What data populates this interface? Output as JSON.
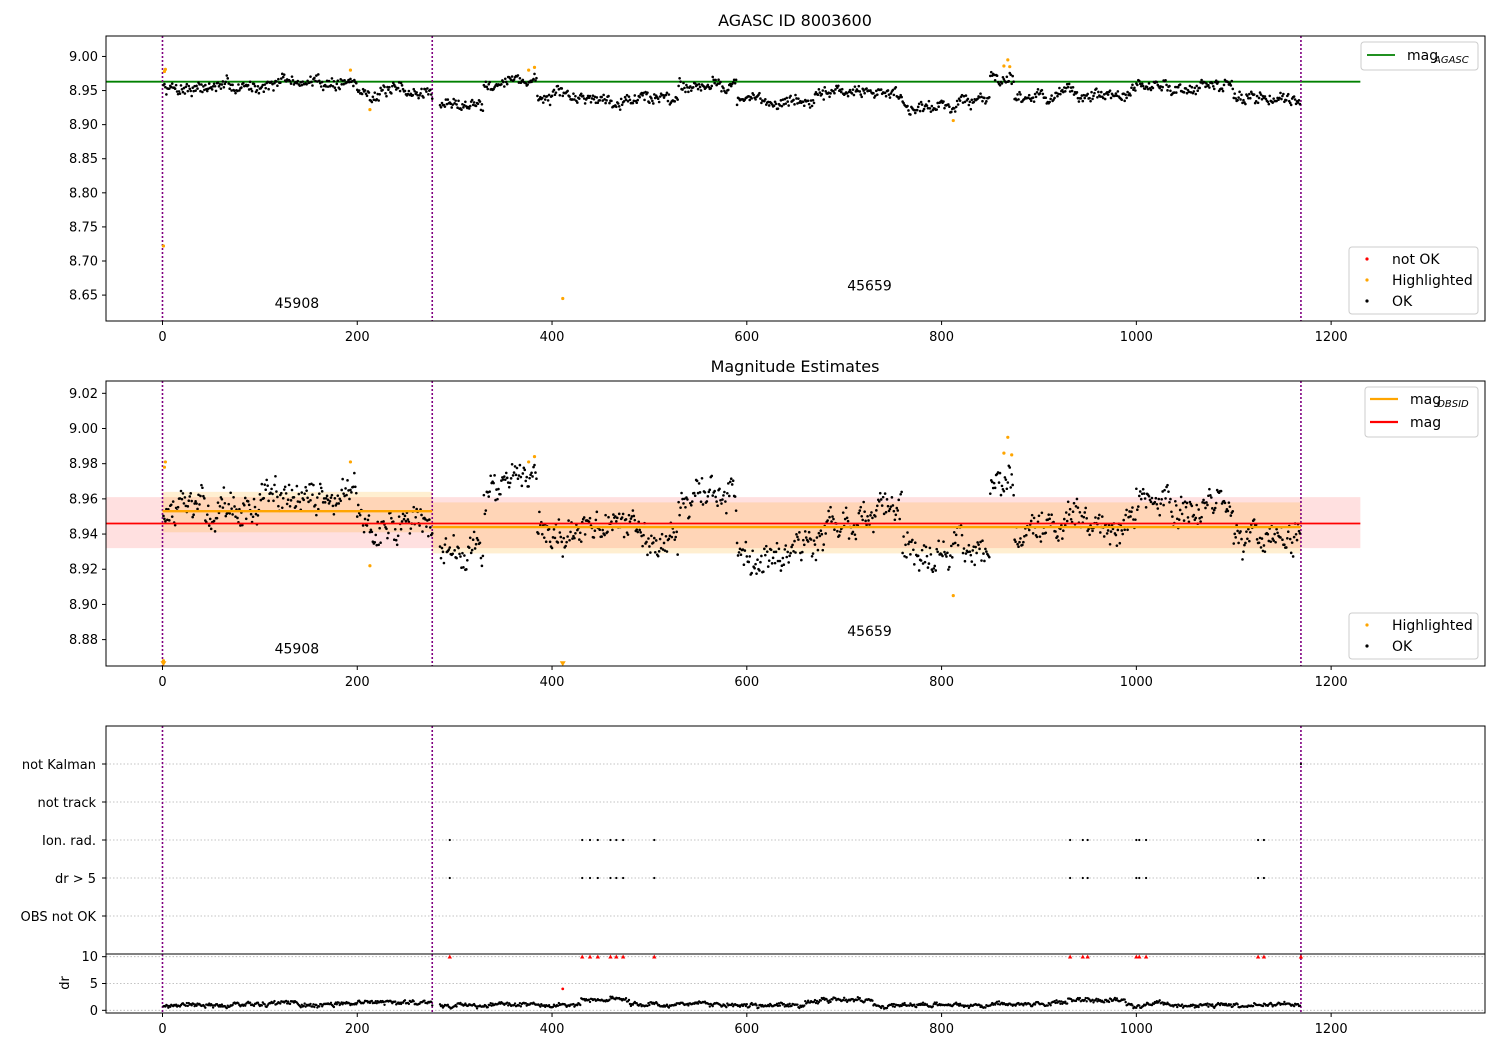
{
  "figure": {
    "top_title": "AGASC ID 8003600",
    "mid_title": "Magnitude Estimates",
    "dr_axis_label": "dr"
  },
  "chart_data": [
    {
      "id": "agasc",
      "type": "scatter",
      "title": "AGASC ID 8003600",
      "xlabel": "",
      "ylabel": "",
      "xlim": [
        -58,
        1358
      ],
      "ylim": [
        8.612,
        9.03
      ],
      "x_ticks": [
        0,
        200,
        400,
        600,
        800,
        1000,
        1200
      ],
      "y_ticks": [
        8.65,
        8.7,
        8.75,
        8.8,
        8.85,
        8.9,
        8.95,
        9.0
      ],
      "y_tick_decimals": 2,
      "obsid_boundaries": [
        0,
        277,
        1169
      ],
      "obsid_labels": [
        {
          "text": "45908",
          "x": 138,
          "y": 8.631
        },
        {
          "text": "45659",
          "x": 726,
          "y": 8.657
        }
      ],
      "reference_line": {
        "name": "mag_AGASC",
        "value": 8.963,
        "x": [
          -58,
          1230
        ],
        "color": "#008000"
      },
      "series": [
        {
          "name": "not OK",
          "color": "#ff0000",
          "points": []
        },
        {
          "name": "Highlighted",
          "color": "#ffa500",
          "points": [
            [
              1,
              8.722
            ],
            [
              2,
              8.978
            ],
            [
              3,
              8.981
            ],
            [
              193,
              8.98
            ],
            [
              213,
              8.922
            ],
            [
              376,
              8.98
            ],
            [
              382,
              8.984
            ],
            [
              411,
              8.645
            ],
            [
              812,
              8.906
            ],
            [
              864,
              8.986
            ],
            [
              868,
              8.995
            ],
            [
              870,
              8.985
            ]
          ]
        },
        {
          "name": "OK",
          "color": "#000000",
          "generated": {
            "x_start": 1,
            "x_end": 1168,
            "step": 1,
            "missing_ranges": [
              [
                278,
                284
              ]
            ],
            "level_segments": [
              [
                1,
                100,
                8.955
              ],
              [
                100,
                200,
                8.962
              ],
              [
                200,
                277,
                8.947
              ],
              [
                285,
                330,
                8.93
              ],
              [
                330,
                385,
                8.965
              ],
              [
                385,
                530,
                8.94
              ],
              [
                530,
                590,
                8.96
              ],
              [
                590,
                680,
                8.935
              ],
              [
                680,
                760,
                8.948
              ],
              [
                760,
                815,
                8.928
              ],
              [
                815,
                850,
                8.935
              ],
              [
                850,
                875,
                8.972
              ],
              [
                875,
                1000,
                8.943
              ],
              [
                1000,
                1100,
                8.955
              ],
              [
                1100,
                1168,
                8.94
              ]
            ],
            "scatter_amplitude": 0.014
          }
        }
      ],
      "legend": {
        "placement": "lower-right",
        "entries": [
          "not OK",
          "Highlighted",
          "OK"
        ],
        "line_legend_placement": "upper-right",
        "line_legend": {
          "label": "mag",
          "subscript": "AGASC"
        }
      }
    },
    {
      "id": "estimates",
      "type": "scatter",
      "title": "Magnitude Estimates",
      "xlabel": "",
      "ylabel": "",
      "xlim": [
        -58,
        1358
      ],
      "ylim": [
        8.865,
        9.027
      ],
      "x_ticks": [
        0,
        200,
        400,
        600,
        800,
        1000,
        1200
      ],
      "y_ticks": [
        8.88,
        8.9,
        8.92,
        8.94,
        8.96,
        8.98,
        9.0,
        9.02
      ],
      "y_tick_decimals": 2,
      "obsid_boundaries": [
        0,
        277,
        1169
      ],
      "obsid_labels": [
        {
          "text": "45908",
          "x": 138,
          "y": 8.872
        },
        {
          "text": "45659",
          "x": 726,
          "y": 8.882
        }
      ],
      "mag_band": {
        "name": "mag",
        "value": 8.946,
        "low": 8.932,
        "high": 8.961,
        "x": [
          -58,
          1230
        ],
        "color": "#ff0000"
      },
      "obsid_bands": [
        {
          "name": "mag_OBSID",
          "x": [
            0,
            277
          ],
          "value": 8.953,
          "low": 8.941,
          "high": 8.964,
          "color": "#ffa500"
        },
        {
          "name": "mag_OBSID",
          "x": [
            277,
            1169
          ],
          "value": 8.944,
          "low": 8.929,
          "high": 8.958,
          "color": "#ffa500"
        }
      ],
      "series": [
        {
          "name": "Highlighted",
          "color": "#ffa500",
          "points": [
            [
              1,
              8.868
            ],
            [
              2,
              8.978
            ],
            [
              3,
              8.981
            ],
            [
              193,
              8.981
            ],
            [
              213,
              8.922
            ],
            [
              376,
              8.981
            ],
            [
              382,
              8.984
            ],
            [
              812,
              8.905
            ],
            [
              864,
              8.986
            ],
            [
              868,
              8.995
            ],
            [
              872,
              8.985
            ]
          ],
          "off_scale_markers": [
            [
              1,
              8.866
            ],
            [
              411,
              8.866
            ]
          ]
        },
        {
          "name": "OK",
          "color": "#000000",
          "generated": {
            "x_start": 1,
            "x_end": 1168,
            "step": 1,
            "missing_ranges": [
              [
                278,
                284
              ]
            ],
            "level_segments": [
              [
                1,
                100,
                8.953
              ],
              [
                100,
                200,
                8.96
              ],
              [
                200,
                277,
                8.946
              ],
              [
                285,
                330,
                8.932
              ],
              [
                330,
                385,
                8.966
              ],
              [
                385,
                530,
                8.94
              ],
              [
                530,
                590,
                8.96
              ],
              [
                590,
                680,
                8.934
              ],
              [
                680,
                760,
                8.948
              ],
              [
                760,
                815,
                8.924
              ],
              [
                815,
                850,
                8.935
              ],
              [
                850,
                875,
                8.972
              ],
              [
                875,
                1000,
                8.943
              ],
              [
                1000,
                1100,
                8.955
              ],
              [
                1100,
                1168,
                8.94
              ]
            ],
            "scatter_amplitude": 0.014
          }
        }
      ],
      "legend": {
        "placement": "lower-right",
        "entries": [
          "Highlighted",
          "OK"
        ],
        "line_legend_placement": "upper-right",
        "line_legend": [
          {
            "label": "mag",
            "subscript": "OBSID",
            "color": "#ffa500"
          },
          {
            "label": "mag",
            "subscript": "",
            "color": "#ff0000"
          }
        ]
      }
    },
    {
      "id": "flags",
      "type": "scatter",
      "xlim": [
        -58,
        1358
      ],
      "x_ticks": [],
      "grid": true,
      "categories": [
        "not Kalman",
        "not track",
        "Ion. rad.",
        "dr > 5",
        "OBS not OK"
      ],
      "obsid_boundaries": [
        0,
        277,
        1169
      ],
      "series": [
        {
          "name": "not Kalman",
          "color": "#000000",
          "points": [
            [
              1169,
              0
            ]
          ]
        },
        {
          "name": "not track",
          "color": "#000000",
          "points": []
        },
        {
          "name": "Ion. rad.",
          "color": "#000000",
          "points": [
            [
              295,
              0
            ],
            [
              431,
              0
            ],
            [
              439,
              0
            ],
            [
              447,
              0
            ],
            [
              460,
              0
            ],
            [
              466,
              0
            ],
            [
              473,
              0
            ],
            [
              505,
              0
            ],
            [
              932,
              0
            ],
            [
              945,
              0
            ],
            [
              950,
              0
            ],
            [
              1000,
              0
            ],
            [
              1003,
              0
            ],
            [
              1010,
              0
            ],
            [
              1125,
              0
            ],
            [
              1131,
              0
            ]
          ]
        },
        {
          "name": "dr > 5",
          "color": "#000000",
          "points": [
            [
              295,
              0
            ],
            [
              431,
              0
            ],
            [
              439,
              0
            ],
            [
              447,
              0
            ],
            [
              460,
              0
            ],
            [
              466,
              0
            ],
            [
              473,
              0
            ],
            [
              505,
              0
            ],
            [
              932,
              0
            ],
            [
              945,
              0
            ],
            [
              950,
              0
            ],
            [
              1000,
              0
            ],
            [
              1003,
              0
            ],
            [
              1010,
              0
            ],
            [
              1125,
              0
            ],
            [
              1131,
              0
            ]
          ]
        },
        {
          "name": "OBS not OK",
          "color": "#000000",
          "points": []
        }
      ]
    },
    {
      "id": "dr",
      "type": "scatter",
      "xlabel": "",
      "ylabel": "dr",
      "xlim": [
        -58,
        1358
      ],
      "ylim": [
        -0.5,
        10.5
      ],
      "x_ticks": [
        0,
        200,
        400,
        600,
        800,
        1000,
        1200
      ],
      "y_ticks": [
        0,
        5,
        10
      ],
      "y_tick_decimals": 0,
      "grid": true,
      "obsid_boundaries": [
        0,
        277,
        1169
      ],
      "series": [
        {
          "name": "dr clipped",
          "color": "#ff0000",
          "marker": "triangle",
          "points": [
            [
              295,
              10
            ],
            [
              431,
              10
            ],
            [
              439,
              10
            ],
            [
              447,
              10
            ],
            [
              460,
              10
            ],
            [
              466,
              10
            ],
            [
              473,
              10
            ],
            [
              505,
              10
            ],
            [
              932,
              10
            ],
            [
              945,
              10
            ],
            [
              950,
              10
            ],
            [
              1000,
              10
            ],
            [
              1003,
              10
            ],
            [
              1010,
              10
            ],
            [
              1125,
              10
            ],
            [
              1131,
              10
            ],
            [
              1169,
              10
            ]
          ]
        },
        {
          "name": "dr outlier",
          "color": "#ff0000",
          "marker": "dot",
          "points": [
            [
              411,
              4.0
            ]
          ]
        },
        {
          "name": "dr",
          "color": "#000000",
          "generated": {
            "x_start": 1,
            "x_end": 1168,
            "step": 1,
            "missing_ranges": [
              [
                278,
                284
              ]
            ],
            "segments": [
              [
                1,
                70,
                1.0
              ],
              [
                70,
                140,
                1.3
              ],
              [
                140,
                200,
                1.0
              ],
              [
                200,
                277,
                1.5
              ],
              [
                285,
                430,
                1.0
              ],
              [
                430,
                480,
                2.0
              ],
              [
                480,
                560,
                1.2
              ],
              [
                560,
                660,
                0.9
              ],
              [
                660,
                730,
                1.8
              ],
              [
                730,
                850,
                0.9
              ],
              [
                850,
                930,
                1.3
              ],
              [
                930,
                990,
                1.9
              ],
              [
                990,
                1100,
                1.0
              ],
              [
                1100,
                1168,
                1.1
              ]
            ],
            "scatter_amplitude": 0.6
          }
        }
      ]
    }
  ]
}
